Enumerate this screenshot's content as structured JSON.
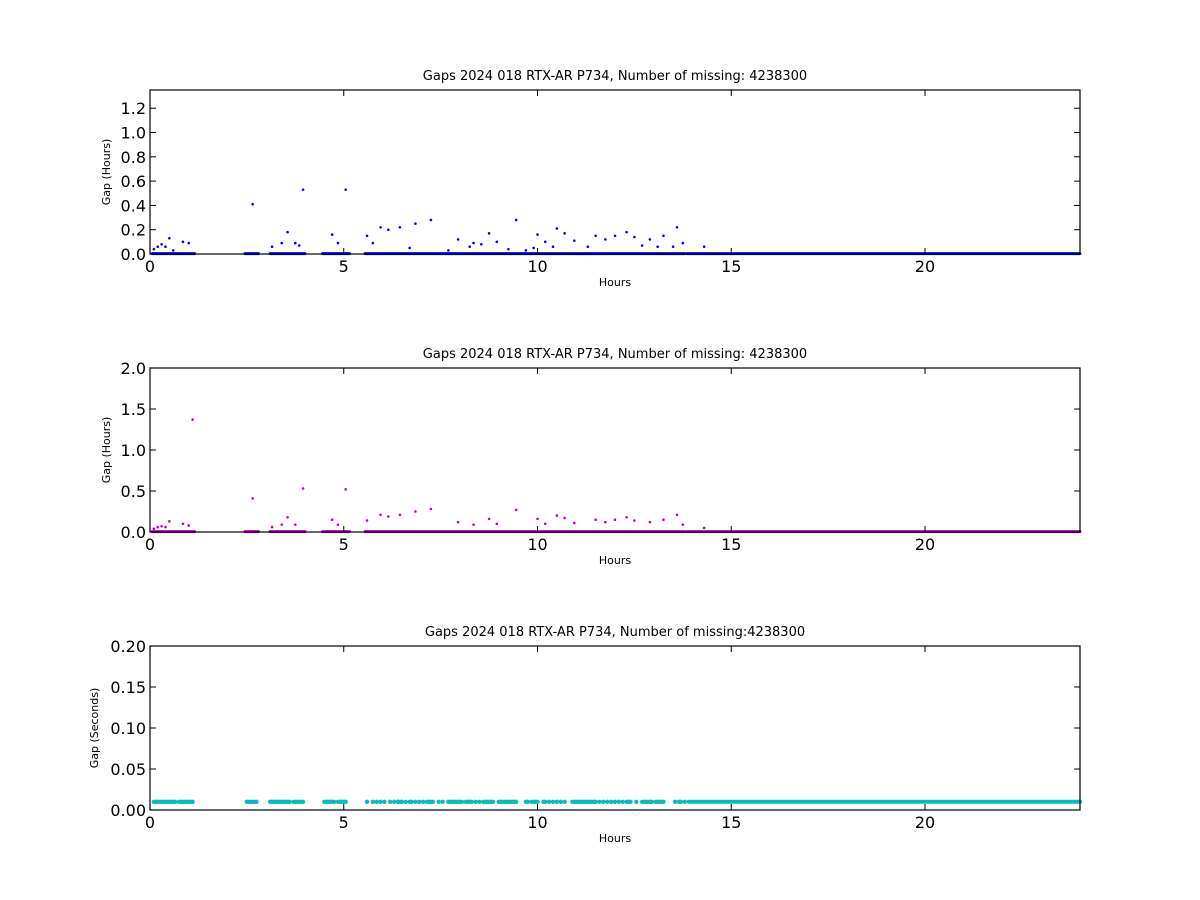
{
  "chart_data": [
    {
      "type": "scatter",
      "title": "Gaps 2024 018 RTX-AR  P734, Number of missing: 4238300",
      "xlabel": "Hours",
      "ylabel": "Gap (Hours)",
      "xlim": [
        0,
        24
      ],
      "ylim": [
        0,
        1.35
      ],
      "xticks": [
        "0",
        "5",
        "10",
        "15",
        "20"
      ],
      "yticks": [
        "0.0",
        "0.2",
        "0.4",
        "0.6",
        "0.8",
        "1.0",
        "1.2"
      ],
      "color": "#0000ff",
      "dense_ranges": [
        [
          0.05,
          1.15
        ],
        [
          2.45,
          2.8
        ],
        [
          3.1,
          4.0
        ],
        [
          4.45,
          5.15
        ],
        [
          5.55,
          13.8
        ],
        [
          13.85,
          24.0
        ]
      ],
      "dense_value": 0.003,
      "outliers": [
        [
          0.1,
          0.04
        ],
        [
          0.2,
          0.06
        ],
        [
          0.3,
          0.08
        ],
        [
          0.4,
          0.06
        ],
        [
          0.5,
          0.13
        ],
        [
          0.6,
          0.03
        ],
        [
          0.85,
          0.1
        ],
        [
          1.0,
          0.09
        ],
        [
          2.65,
          0.41
        ],
        [
          3.15,
          0.06
        ],
        [
          3.4,
          0.09
        ],
        [
          3.55,
          0.18
        ],
        [
          3.75,
          0.09
        ],
        [
          3.85,
          0.07
        ],
        [
          3.95,
          0.53
        ],
        [
          4.7,
          0.16
        ],
        [
          4.85,
          0.09
        ],
        [
          5.05,
          0.53
        ],
        [
          5.6,
          0.15
        ],
        [
          5.75,
          0.09
        ],
        [
          5.95,
          0.22
        ],
        [
          6.15,
          0.2
        ],
        [
          6.45,
          0.22
        ],
        [
          6.7,
          0.05
        ],
        [
          6.85,
          0.25
        ],
        [
          7.25,
          0.28
        ],
        [
          7.7,
          0.03
        ],
        [
          7.95,
          0.12
        ],
        [
          8.25,
          0.06
        ],
        [
          8.35,
          0.09
        ],
        [
          8.55,
          0.08
        ],
        [
          8.75,
          0.17
        ],
        [
          8.95,
          0.1
        ],
        [
          9.25,
          0.04
        ],
        [
          9.45,
          0.28
        ],
        [
          9.7,
          0.03
        ],
        [
          9.9,
          0.05
        ],
        [
          10.0,
          0.16
        ],
        [
          10.2,
          0.1
        ],
        [
          10.4,
          0.06
        ],
        [
          10.5,
          0.21
        ],
        [
          10.7,
          0.17
        ],
        [
          10.95,
          0.11
        ],
        [
          11.3,
          0.06
        ],
        [
          11.5,
          0.15
        ],
        [
          11.75,
          0.12
        ],
        [
          12.0,
          0.15
        ],
        [
          12.3,
          0.18
        ],
        [
          12.5,
          0.14
        ],
        [
          12.7,
          0.07
        ],
        [
          12.9,
          0.12
        ],
        [
          13.1,
          0.06
        ],
        [
          13.25,
          0.15
        ],
        [
          13.5,
          0.06
        ],
        [
          13.6,
          0.22
        ],
        [
          13.75,
          0.09
        ],
        [
          14.3,
          0.06
        ]
      ]
    },
    {
      "type": "scatter",
      "title": "Gaps 2024 018 RTX-AR  P734, Number of missing: 4238300",
      "xlabel": "Hours",
      "ylabel": "Gap (Hours)",
      "xlim": [
        0,
        24
      ],
      "ylim": [
        0,
        2.0
      ],
      "xticks": [
        "0",
        "5",
        "10",
        "15",
        "20"
      ],
      "yticks": [
        "0.0",
        "0.5",
        "1.0",
        "1.5",
        "2.0"
      ],
      "color": "#bf00bf",
      "dense_ranges": [
        [
          0.05,
          1.15
        ],
        [
          2.45,
          2.8
        ],
        [
          3.1,
          4.0
        ],
        [
          4.45,
          5.15
        ],
        [
          5.55,
          13.8
        ],
        [
          13.85,
          24.0
        ]
      ],
      "dense_value": 0.004,
      "outliers": [
        [
          0.1,
          0.04
        ],
        [
          0.2,
          0.06
        ],
        [
          0.3,
          0.07
        ],
        [
          0.4,
          0.06
        ],
        [
          0.5,
          0.13
        ],
        [
          0.85,
          0.1
        ],
        [
          1.0,
          0.08
        ],
        [
          1.1,
          1.37
        ],
        [
          2.65,
          0.41
        ],
        [
          3.15,
          0.06
        ],
        [
          3.4,
          0.09
        ],
        [
          3.55,
          0.18
        ],
        [
          3.75,
          0.09
        ],
        [
          3.95,
          0.53
        ],
        [
          4.7,
          0.15
        ],
        [
          4.85,
          0.09
        ],
        [
          5.05,
          0.52
        ],
        [
          5.6,
          0.14
        ],
        [
          5.95,
          0.21
        ],
        [
          6.15,
          0.19
        ],
        [
          6.45,
          0.21
        ],
        [
          6.85,
          0.25
        ],
        [
          7.25,
          0.28
        ],
        [
          7.95,
          0.12
        ],
        [
          8.35,
          0.09
        ],
        [
          8.75,
          0.16
        ],
        [
          8.95,
          0.1
        ],
        [
          9.45,
          0.27
        ],
        [
          10.0,
          0.16
        ],
        [
          10.2,
          0.1
        ],
        [
          10.5,
          0.2
        ],
        [
          10.7,
          0.17
        ],
        [
          10.95,
          0.11
        ],
        [
          11.5,
          0.15
        ],
        [
          11.75,
          0.12
        ],
        [
          12.0,
          0.15
        ],
        [
          12.3,
          0.18
        ],
        [
          12.5,
          0.14
        ],
        [
          12.9,
          0.12
        ],
        [
          13.25,
          0.15
        ],
        [
          13.6,
          0.21
        ],
        [
          13.75,
          0.09
        ],
        [
          14.3,
          0.05
        ]
      ]
    },
    {
      "type": "scatter",
      "title": "Gaps 2024 018 RTX-AR  P734, Number of missing:4238300",
      "xlabel": "Hours",
      "ylabel": "Gap (Seconds)",
      "xlim": [
        0,
        24
      ],
      "ylim": [
        0,
        0.2
      ],
      "xticks": [
        "0",
        "5",
        "10",
        "15",
        "20"
      ],
      "yticks": [
        "0.00",
        "0.05",
        "0.10",
        "0.15",
        "0.20"
      ],
      "color": "#00bfbf",
      "dense_ranges": [
        [
          13.9,
          24.0
        ]
      ],
      "dense_value": 0.01,
      "points": [
        0.1,
        0.15,
        0.2,
        0.25,
        0.3,
        0.35,
        0.4,
        0.45,
        0.5,
        0.55,
        0.6,
        0.65,
        0.75,
        0.8,
        0.85,
        0.9,
        0.95,
        1.0,
        1.05,
        1.1,
        2.5,
        2.55,
        2.6,
        2.65,
        2.7,
        2.75,
        3.1,
        3.15,
        3.2,
        3.25,
        3.3,
        3.35,
        3.4,
        3.45,
        3.5,
        3.55,
        3.6,
        3.7,
        3.75,
        3.8,
        3.85,
        3.9,
        3.95,
        4.5,
        4.55,
        4.6,
        4.65,
        4.7,
        4.75,
        4.85,
        4.9,
        4.95,
        5.0,
        5.05,
        5.6,
        5.75,
        5.85,
        5.95,
        6.05,
        6.2,
        6.3,
        6.4,
        6.45,
        6.5,
        6.6,
        6.7,
        6.75,
        6.85,
        6.95,
        7.05,
        7.15,
        7.2,
        7.25,
        7.3,
        7.45,
        7.55,
        7.7,
        7.75,
        7.8,
        7.85,
        7.9,
        7.95,
        8.0,
        8.05,
        8.15,
        8.2,
        8.25,
        8.3,
        8.4,
        8.5,
        8.6,
        8.65,
        8.7,
        8.75,
        8.8,
        8.85,
        9.0,
        9.05,
        9.1,
        9.15,
        9.2,
        9.25,
        9.3,
        9.35,
        9.4,
        9.45,
        9.7,
        9.75,
        9.85,
        9.9,
        9.95,
        10.0,
        10.15,
        10.2,
        10.3,
        10.4,
        10.5,
        10.6,
        10.7,
        10.9,
        10.95,
        11.0,
        11.05,
        11.1,
        11.15,
        11.2,
        11.25,
        11.3,
        11.35,
        11.4,
        11.45,
        11.5,
        11.6,
        11.7,
        11.8,
        11.9,
        12.0,
        12.1,
        12.2,
        12.3,
        12.35,
        12.4,
        12.55,
        12.7,
        12.75,
        12.8,
        12.85,
        12.9,
        12.95,
        13.05,
        13.1,
        13.15,
        13.2,
        13.25,
        13.55,
        13.65,
        13.7,
        13.8
      ]
    }
  ]
}
